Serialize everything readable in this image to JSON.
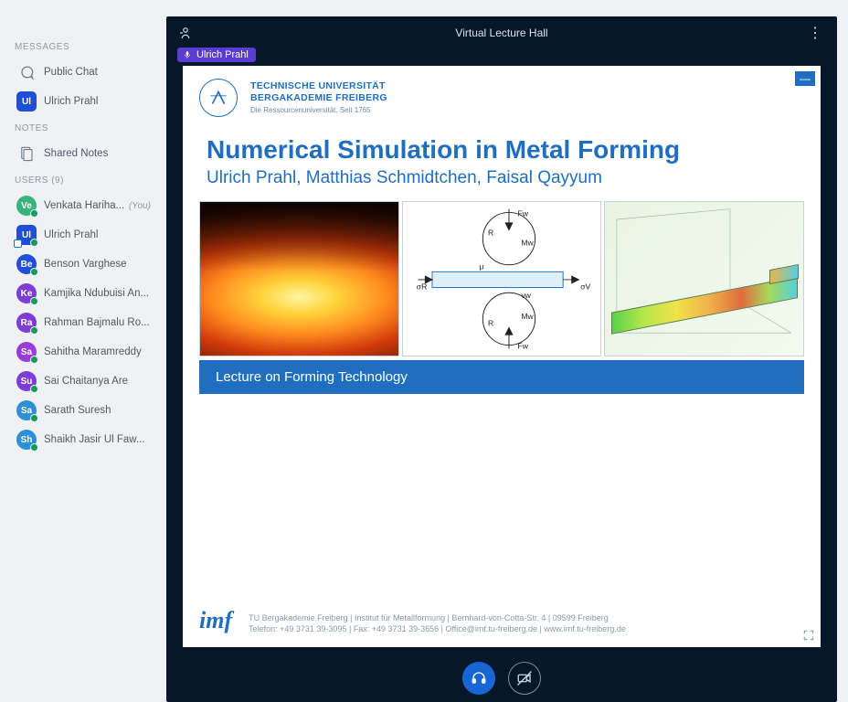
{
  "sections": {
    "messages": "MESSAGES",
    "notes": "NOTES",
    "users": "USERS (9)"
  },
  "sidebar": {
    "public_chat": "Public Chat",
    "private_chat": {
      "name": "Ulrich Prahl",
      "initials": "Ul",
      "color": "#1f4fd6"
    },
    "shared_notes": "Shared Notes"
  },
  "users": [
    {
      "initials": "Ve",
      "color": "#36b37e",
      "name": "Venkata Hariha...",
      "you": true,
      "square": false
    },
    {
      "initials": "Ul",
      "color": "#1f4fd6",
      "name": "Ulrich Prahl",
      "you": false,
      "square": true
    },
    {
      "initials": "Be",
      "color": "#1f4fd6",
      "name": "Benson Varghese",
      "you": false,
      "square": false
    },
    {
      "initials": "Ke",
      "color": "#7d3cd8",
      "name": "Kamjika Ndubuisi An...",
      "you": false,
      "square": false
    },
    {
      "initials": "Ra",
      "color": "#7d3cd8",
      "name": "Rahman Bajmalu Ro...",
      "you": false,
      "square": false
    },
    {
      "initials": "Sa",
      "color": "#9b3cd8",
      "name": "Sahitha Maramreddy",
      "you": false,
      "square": false
    },
    {
      "initials": "Su",
      "color": "#7d3cd8",
      "name": "Sai Chaitanya Are",
      "you": false,
      "square": false
    },
    {
      "initials": "Sa",
      "color": "#2d8fd6",
      "name": "Sarath Suresh",
      "you": false,
      "square": false
    },
    {
      "initials": "Sh",
      "color": "#2d8fd6",
      "name": "Shaikh Jasir Ul Faw...",
      "you": false,
      "square": false
    }
  ],
  "topbar": {
    "title": "Virtual Lecture Hall"
  },
  "presenter_chip": "Ulrich Prahl",
  "slide": {
    "uni_line1": "TECHNISCHE UNIVERSITÄT",
    "uni_line2": "BERGAKADEMIE FREIBERG",
    "uni_sub": "Die Ressourcenuniversität. Seit 1765",
    "title": "Numerical Simulation in Metal Forming",
    "authors": "Ulrich Prahl, Matthias Schmidtchen, Faisal Qayyum",
    "band": "Lecture on Forming Technology",
    "footer1": "TU Bergakademie Freiberg | Institut für Metallformung | Bernhard-von-Cotta-Str. 4 | 09599 Freiberg",
    "footer2": "Telefon: +49 3731 39-3095 | Fax: +49 3731 39-3656 | Office@imf.tu-freiberg.de | www.imf.tu-freiberg.de",
    "imf": "imf",
    "diagram_labels": {
      "Fw": "Fw",
      "R": "R",
      "Mw": "Mw",
      "mu": "μ",
      "vw": "vw",
      "sigR": "σR",
      "sigV": "σV"
    }
  },
  "you_label": "(You)"
}
